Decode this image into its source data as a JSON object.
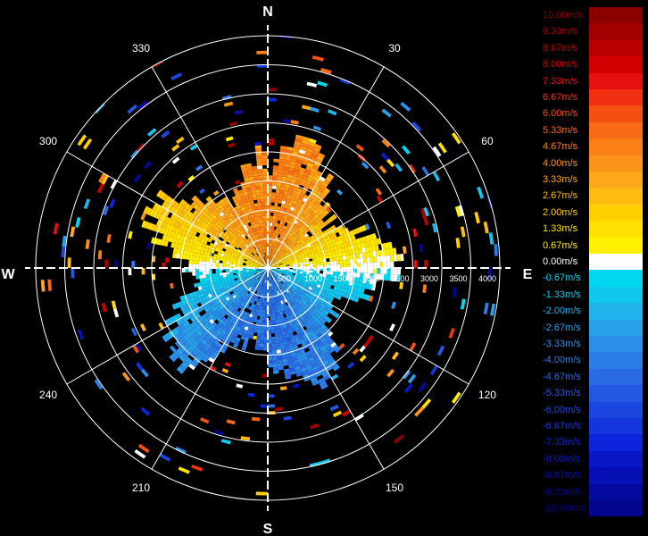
{
  "chart_data": {
    "type": "heatmap",
    "projection": "polar",
    "grid": true,
    "background": "#000000",
    "compass": {
      "north": "N",
      "east": "E",
      "south": "S",
      "west": "W"
    },
    "angle_ticks": [
      "30",
      "60",
      "120",
      "150",
      "210",
      "240",
      "300",
      "330"
    ],
    "angle_tick_values": [
      30,
      60,
      120,
      150,
      210,
      240,
      300,
      330
    ],
    "range_ticks": [
      "500",
      "1000",
      "1500",
      "2000",
      "2500",
      "3000",
      "3500",
      "4000"
    ],
    "range_tick_values": [
      500,
      1000,
      1500,
      2000,
      2500,
      3000,
      3500,
      4000
    ],
    "rlim": [
      0,
      4000
    ],
    "legend_position": "right",
    "colorbar": {
      "labels": [
        "10.00m/s",
        "9.33m/s",
        "8.67m/s",
        "8.00m/s",
        "7.33m/s",
        "6.67m/s",
        "6.00m/s",
        "5.33m/s",
        "4.67m/s",
        "4.00m/s",
        "3.33m/s",
        "2.67m/s",
        "2.00m/s",
        "1.33m/s",
        "0.67m/s",
        "0.00m/s",
        "-0.67m/s",
        "-1.33m/s",
        "-2.00m/s",
        "-2.67m/s",
        "-3.33m/s",
        "-4.00m/s",
        "-4.67m/s",
        "-5.33m/s",
        "-6.00m/s",
        "-6.67m/s",
        "-7.33m/s",
        "-8.00m/s",
        "-8.67m/s",
        "-9.33m/s",
        "-10.00m/s"
      ],
      "values": [
        10,
        9.33,
        8.67,
        8,
        7.33,
        6.67,
        6,
        5.33,
        4.67,
        4,
        3.33,
        2.67,
        2,
        1.33,
        0.67,
        0,
        -0.67,
        -1.33,
        -2,
        -2.67,
        -3.33,
        -4,
        -4.67,
        -5.33,
        -6,
        -6.67,
        -7.33,
        -8,
        -8.67,
        -9.33,
        -10
      ],
      "colors": [
        "#8b0000",
        "#a30000",
        "#bb0000",
        "#d10000",
        "#e61010",
        "#f03010",
        "#f55012",
        "#f86a14",
        "#fa8016",
        "#fb9418",
        "#fda81a",
        "#febb10",
        "#ffcf00",
        "#ffe000",
        "#fff000",
        "#ffffff",
        "#00d8f0",
        "#10c8ee",
        "#20b4ec",
        "#28a0ea",
        "#2c8ee8",
        "#2c7ce6",
        "#2a6ae4",
        "#2458e2",
        "#1c46e0",
        "#1434de",
        "#0c24dc",
        "#0818c8",
        "#0610b4",
        "#040aa0",
        "#02068c"
      ]
    },
    "field_summary": {
      "positive_sector_deg": [
        270,
        90
      ],
      "negative_sector_deg": [
        90,
        270
      ],
      "dense_echo_range": [
        0,
        1900
      ],
      "sparse_echo_range": [
        1900,
        4000
      ]
    }
  }
}
